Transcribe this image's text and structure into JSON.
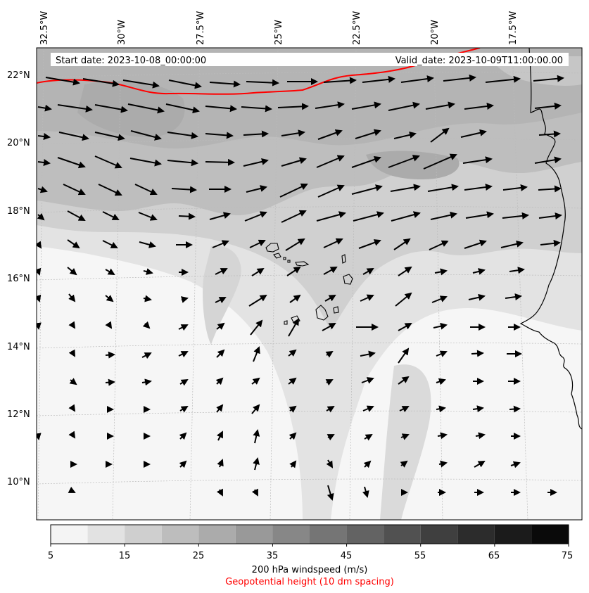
{
  "header": {
    "start_date": "Start date: 2023-10-08_00:00:00",
    "valid_date": "Valid_date: 2023-10-09T11:00:00.00"
  },
  "map": {
    "lon_labels": [
      "32.5°W",
      "30°W",
      "27.5°W",
      "25°W",
      "22.5°W",
      "20°W",
      "17.5°W"
    ],
    "lat_labels": [
      "22°N",
      "20°N",
      "18°N",
      "16°N",
      "14°N",
      "12°N",
      "10°N"
    ],
    "grid": true,
    "field": "200 hPa windspeed",
    "contour": "Geopotential height",
    "colors": {
      "contour": "#ff0000",
      "coast": "#000000",
      "arrows": "#000000"
    }
  },
  "colorbar": {
    "tick_labels": [
      "5",
      "15",
      "25",
      "35",
      "45",
      "55",
      "65",
      "75"
    ],
    "levels": [
      5,
      10,
      15,
      20,
      25,
      30,
      35,
      40,
      45,
      50,
      55,
      60,
      65,
      70,
      75
    ],
    "colors": [
      "#f4f4f4",
      "#e2e2e2",
      "#cfcfcf",
      "#bdbdbd",
      "#ababab",
      "#999999",
      "#878787",
      "#757575",
      "#636363",
      "#515151",
      "#3f3f3f",
      "#2c2c2c",
      "#1b1b1b",
      "#0a0a0a"
    ],
    "label": "200 hPa windspeed (m/s)",
    "sublabel": "Geopotential height (10 dm spacing)"
  }
}
